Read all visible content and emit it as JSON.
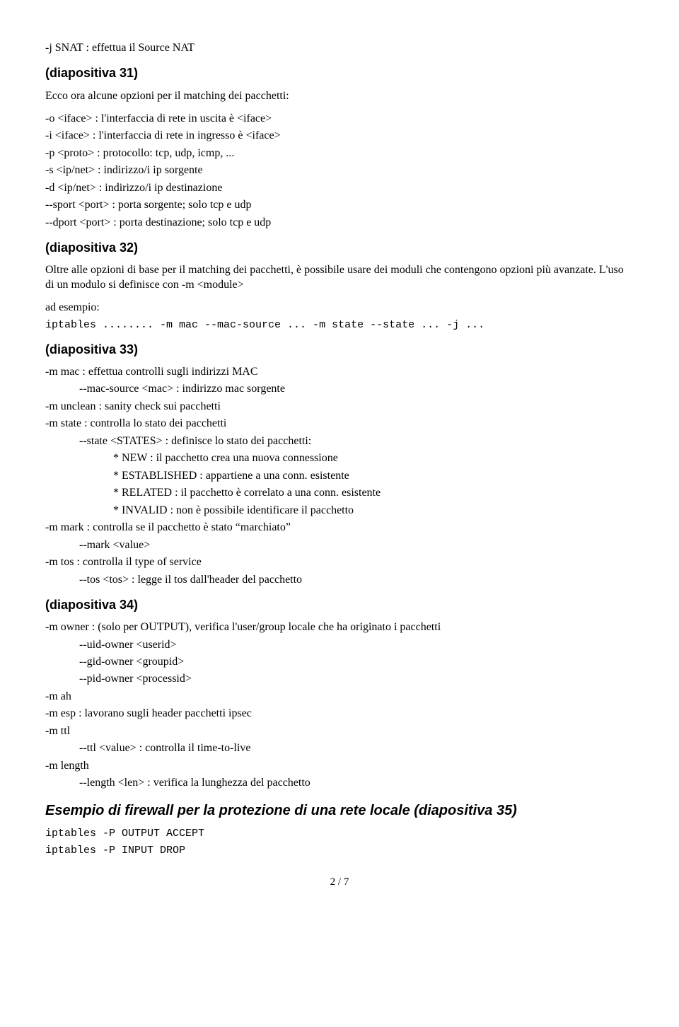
{
  "intro_line": "-j SNAT : effettua il Source NAT",
  "s31": {
    "heading": "(diapositiva 31)",
    "intro": "Ecco ora alcune opzioni per il matching dei pacchetti:",
    "l1": "-o <iface> : l'interfaccia di rete in uscita è <iface>",
    "l2": "-i <iface> : l'interfaccia di rete in ingresso è <iface>",
    "l3": "-p <proto> : protocollo: tcp, udp, icmp, ...",
    "l4": "-s <ip/net> : indirizzo/i ip sorgente",
    "l5": "-d <ip/net> : indirizzo/i ip destinazione",
    "l6": "--sport <port> : porta sorgente; solo tcp e udp",
    "l7": "--dport <port> : porta destinazione; solo tcp e udp"
  },
  "s32": {
    "heading": "(diapositiva 32)",
    "p1": "Oltre alle opzioni di base per il matching dei pacchetti, è possibile usare dei moduli che contengono opzioni più avanzate. L'uso di un modulo si definisce con -m <module>",
    "example_label": "ad esempio:",
    "code": "iptables ........ -m mac --mac-source ... -m state --state ... -j ..."
  },
  "s33": {
    "heading": "(diapositiva 33)",
    "l1": "-m mac : effettua controlli sugli indirizzi MAC",
    "l1a": "--mac-source <mac> : indirizzo mac sorgente",
    "l2": "-m unclean : sanity check sui pacchetti",
    "l3": "-m state : controlla lo stato dei pacchetti",
    "l3a": "--state <STATES> : definisce lo stato dei pacchetti:",
    "l3b": "* NEW : il pacchetto crea una nuova connessione",
    "l3c": "* ESTABLISHED : appartiene a una conn. esistente",
    "l3d": "* RELATED : il pacchetto è correlato a una conn. esistente",
    "l3e": "* INVALID : non è possibile identificare il pacchetto",
    "l4": "-m mark : controlla se il pacchetto è stato “marchiato”",
    "l4a": "--mark <value>",
    "l5": "-m tos : controlla il type of service",
    "l5a": "--tos <tos> : legge il tos dall'header del pacchetto"
  },
  "s34": {
    "heading": "(diapositiva 34)",
    "l1": "-m owner : (solo per OUTPUT), verifica l'user/group locale che ha originato i pacchetti",
    "l1a": "--uid-owner <userid>",
    "l1b": "--gid-owner <groupid>",
    "l1c": "--pid-owner <processid>",
    "l2": "-m ah",
    "l3": "-m esp : lavorano sugli header pacchetti ipsec",
    "l4": "-m ttl",
    "l4a": "--ttl <value> : controlla il time-to-live",
    "l5": "-m length",
    "l5a": "--length <len> : verifica la lunghezza del pacchetto"
  },
  "s35": {
    "heading": "Esempio di firewall per la protezione di una rete locale (diapositiva 35)",
    "code1": "iptables -P OUTPUT ACCEPT",
    "code2": "iptables -P INPUT DROP"
  },
  "page_num": "2 / 7"
}
